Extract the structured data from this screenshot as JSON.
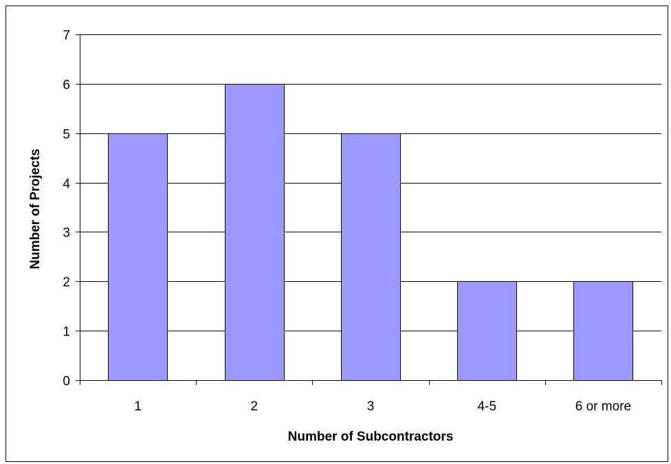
{
  "chart_data": {
    "type": "bar",
    "title": "",
    "xlabel": "Number of Subcontractors",
    "ylabel": "Number of Projects",
    "categories": [
      "1",
      "2",
      "3",
      "4-5",
      "6 or more"
    ],
    "values": [
      5,
      6,
      5,
      2,
      2
    ],
    "ylim": [
      0,
      7
    ],
    "yticks": [
      0,
      1,
      2,
      3,
      4,
      5,
      6,
      7
    ],
    "grid": true,
    "legend": "none",
    "bar_color": "#9999ff",
    "bar_border_color": "#000000"
  }
}
